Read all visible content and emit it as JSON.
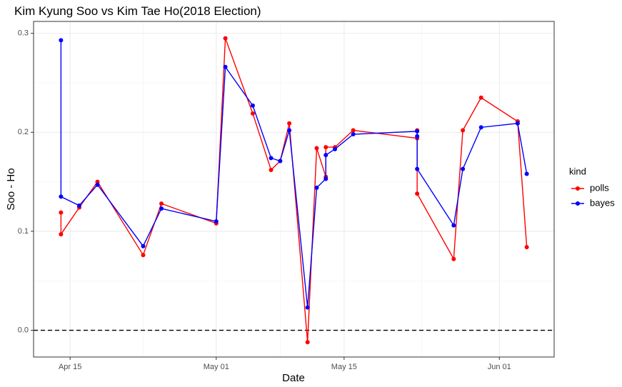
{
  "chart_data": {
    "type": "line",
    "title": "Kim Kyung Soo vs Kim Tae Ho(2018 Election)",
    "x_label": "Date",
    "y_label": "Soo - Ho",
    "legend_title": "kind",
    "legend_position": "right",
    "grid": true,
    "reference_line": 0,
    "xlim": [
      "04-11",
      "06-07"
    ],
    "xticks": [
      {
        "value": "04-15",
        "label": "Apr 15"
      },
      {
        "value": "05-01",
        "label": "May 01"
      },
      {
        "value": "05-15",
        "label": "May 15"
      },
      {
        "value": "06-01",
        "label": "Jun 01"
      }
    ],
    "ylim": [
      -0.027,
      0.312
    ],
    "yticks": [
      {
        "value": 0,
        "label": "0.0"
      },
      0.1,
      0.2,
      0.3
    ],
    "series": [
      {
        "name": "polls",
        "color": "#ff0000",
        "x": [
          "04-14",
          "04-14",
          "04-16",
          "04-18",
          "04-23",
          "04-25",
          "05-01",
          "05-02",
          "05-05",
          "05-07",
          "05-08",
          "05-09",
          "05-11",
          "05-12",
          "05-13",
          "05-13",
          "05-14",
          "05-16",
          "05-23",
          "05-23",
          "05-23",
          "05-27",
          "05-28",
          "05-30",
          "06-03",
          "06-03",
          "06-04"
        ],
        "values": [
          0.119,
          0.097,
          0.124,
          0.15,
          0.076,
          0.128,
          0.108,
          0.295,
          0.219,
          0.162,
          0.171,
          0.209,
          -0.012,
          0.184,
          0.155,
          0.185,
          0.185,
          0.202,
          0.194,
          0.202,
          0.138,
          0.072,
          0.202,
          0.235,
          0.211,
          0.211,
          0.084
        ]
      },
      {
        "name": "bayes",
        "color": "#0000ff",
        "x": [
          "04-14",
          "04-14",
          "04-16",
          "04-18",
          "04-23",
          "04-25",
          "05-01",
          "05-02",
          "05-05",
          "05-07",
          "05-08",
          "05-09",
          "05-11",
          "05-12",
          "05-13",
          "05-13",
          "05-14",
          "05-16",
          "05-23",
          "05-23",
          "05-23",
          "05-27",
          "05-28",
          "05-30",
          "06-03",
          "06-03",
          "06-04"
        ],
        "values": [
          0.293,
          0.135,
          0.126,
          0.147,
          0.085,
          0.123,
          0.11,
          0.266,
          0.227,
          0.174,
          0.171,
          0.202,
          0.023,
          0.144,
          0.153,
          0.177,
          0.183,
          0.198,
          0.201,
          0.196,
          0.163,
          0.106,
          0.163,
          0.205,
          0.209,
          0.209,
          0.158
        ]
      }
    ]
  }
}
